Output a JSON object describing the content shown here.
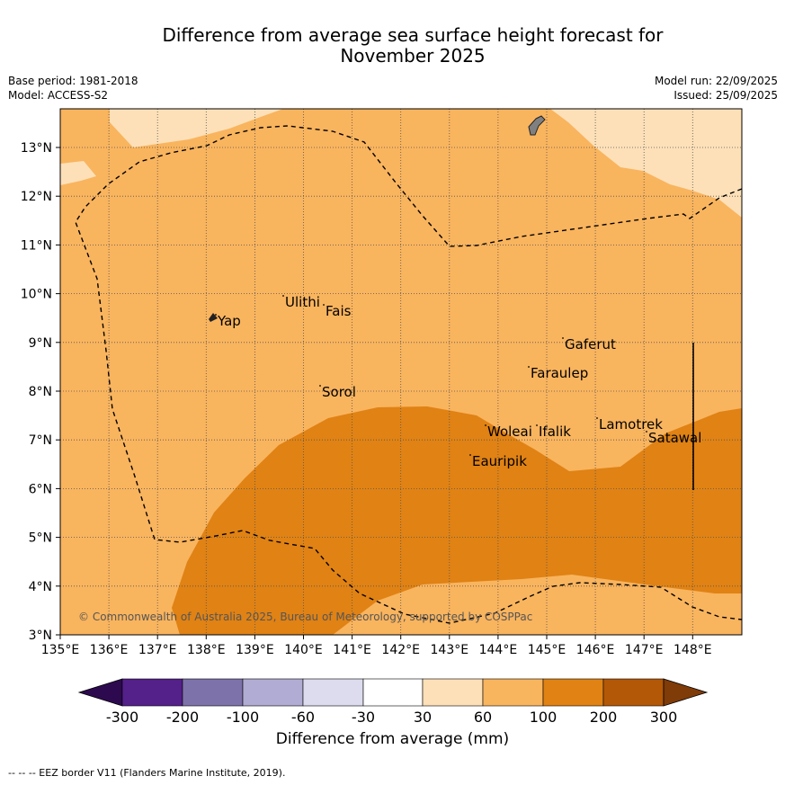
{
  "title_line1": "Difference from average sea surface height forecast for",
  "title_line2": "November 2025",
  "base_period": "Base period: 1981-2018",
  "model": "Model: ACCESS-S2",
  "model_run": "Model run: 22/09/2025",
  "issued": "Issued: 25/09/2025",
  "copyright": "© Commonwealth of Australia 2025, Bureau of Meteorology, supported by COSPPac",
  "colorbar_label": "Difference from average (mm)",
  "colorbar_ticks": [
    "-300",
    "-200",
    "-100",
    "-60",
    "-30",
    "30",
    "60",
    "100",
    "200",
    "300"
  ],
  "colorbar_colors": {
    "below_min": "#2d0a4f",
    "bins": [
      "#54208a",
      "#7e72ab",
      "#b1acd3",
      "#dcdcee",
      "#ffffff",
      "#fde0b8",
      "#f9b45e",
      "#e08214",
      "#b35806"
    ],
    "above_max": "#7f3b08"
  },
  "footnote": "--  --  -- EEZ border V11 (Flanders Marine Institute, 2019).",
  "lon_labels": [
    "135°E",
    "136°E",
    "137°E",
    "138°E",
    "139°E",
    "140°E",
    "141°E",
    "142°E",
    "143°E",
    "144°E",
    "145°E",
    "146°E",
    "147°E",
    "148°E"
  ],
  "lat_labels": [
    "3°N",
    "4°N",
    "5°N",
    "6°N",
    "7°N",
    "8°N",
    "9°N",
    "10°N",
    "11°N",
    "12°N",
    "13°N"
  ],
  "places": [
    "Yap",
    "Ulithi",
    "Fais",
    "Sorol",
    "Gaferut",
    "Faraulep",
    "Woleai",
    "Ifalik",
    "Lamotrek",
    "Satawal",
    "Eauripik"
  ],
  "colors": {
    "light_fill": "#fde0b8",
    "mid_fill": "#f9b45e",
    "dark_fill": "#e08214",
    "land": "#808080",
    "grid": "#555555"
  }
}
